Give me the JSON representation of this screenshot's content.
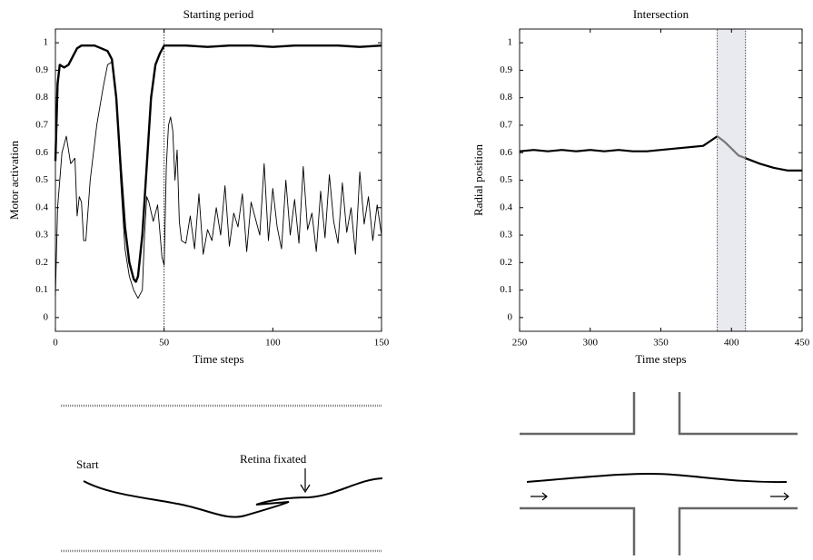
{
  "chart_data": [
    {
      "type": "line",
      "title": "Starting period",
      "xlabel": "Time steps",
      "ylabel": "Motor activation",
      "xlim": [
        0,
        150
      ],
      "ylim": [
        -0.05,
        1.05
      ],
      "xticks": [
        0,
        50,
        100,
        150
      ],
      "yticks": [
        0,
        0.1,
        0.2,
        0.3,
        0.4,
        0.5,
        0.6,
        0.7,
        0.8,
        0.9,
        1
      ],
      "vline": 50,
      "series": [
        {
          "color": "#000000",
          "width": 2.4,
          "x": [
            0,
            1,
            2,
            4,
            6,
            8,
            10,
            12,
            15,
            18,
            21,
            24,
            26,
            28,
            30,
            32,
            34,
            36,
            37,
            38,
            40,
            42,
            44,
            46,
            48,
            50,
            60,
            70,
            80,
            90,
            100,
            110,
            120,
            130,
            140,
            150
          ],
          "values": [
            0.57,
            0.85,
            0.92,
            0.91,
            0.92,
            0.95,
            0.98,
            0.99,
            0.99,
            0.99,
            0.98,
            0.97,
            0.94,
            0.8,
            0.55,
            0.33,
            0.2,
            0.14,
            0.13,
            0.15,
            0.3,
            0.55,
            0.8,
            0.92,
            0.96,
            0.99,
            0.99,
            0.985,
            0.99,
            0.99,
            0.985,
            0.99,
            0.99,
            0.99,
            0.985,
            0.99
          ]
        },
        {
          "color": "#000000",
          "width": 0.9,
          "x": [
            0,
            1,
            3,
            5,
            7,
            9,
            10,
            11,
            12,
            13,
            14,
            16,
            19,
            22,
            24,
            26,
            28,
            30,
            32,
            34,
            36,
            38,
            40,
            41,
            42,
            43,
            45,
            47,
            49,
            50,
            51,
            52,
            53,
            54,
            55,
            56,
            57,
            58,
            60,
            62,
            64,
            66,
            68,
            70,
            72,
            74,
            76,
            78,
            80,
            82,
            84,
            86,
            88,
            90,
            92,
            94,
            96,
            98,
            100,
            102,
            104,
            106,
            108,
            110,
            112,
            114,
            116,
            118,
            120,
            122,
            124,
            126,
            128,
            130,
            132,
            134,
            136,
            138,
            140,
            142,
            144,
            146,
            148,
            150
          ],
          "values": [
            0.08,
            0.4,
            0.6,
            0.66,
            0.56,
            0.58,
            0.37,
            0.44,
            0.42,
            0.28,
            0.28,
            0.5,
            0.7,
            0.84,
            0.92,
            0.93,
            0.8,
            0.5,
            0.25,
            0.15,
            0.1,
            0.07,
            0.1,
            0.3,
            0.44,
            0.42,
            0.35,
            0.41,
            0.22,
            0.19,
            0.55,
            0.7,
            0.73,
            0.68,
            0.5,
            0.61,
            0.35,
            0.28,
            0.27,
            0.37,
            0.25,
            0.45,
            0.23,
            0.32,
            0.28,
            0.4,
            0.3,
            0.48,
            0.26,
            0.38,
            0.33,
            0.45,
            0.24,
            0.42,
            0.36,
            0.3,
            0.56,
            0.28,
            0.47,
            0.33,
            0.25,
            0.5,
            0.3,
            0.43,
            0.27,
            0.55,
            0.32,
            0.38,
            0.24,
            0.46,
            0.29,
            0.52,
            0.35,
            0.27,
            0.49,
            0.31,
            0.4,
            0.23,
            0.53,
            0.34,
            0.44,
            0.28,
            0.41,
            0.3
          ]
        }
      ]
    },
    {
      "type": "line",
      "title": "Intersection",
      "xlabel": "Time steps",
      "ylabel": "Radial position",
      "xlim": [
        250,
        450
      ],
      "ylim": [
        -0.05,
        1.05
      ],
      "xticks": [
        250,
        300,
        350,
        400,
        450
      ],
      "yticks": [
        0,
        0.1,
        0.2,
        0.3,
        0.4,
        0.5,
        0.6,
        0.7,
        0.8,
        0.9,
        1
      ],
      "shade": [
        390,
        410
      ],
      "series": [
        {
          "color": "#000000",
          "width": 2.2,
          "x": [
            250,
            260,
            270,
            280,
            290,
            300,
            310,
            320,
            330,
            340,
            350,
            360,
            370,
            380,
            390,
            400,
            410,
            420,
            430,
            440,
            450
          ],
          "values": [
            0.605,
            0.61,
            0.605,
            0.61,
            0.605,
            0.61,
            0.605,
            0.61,
            0.605,
            0.605,
            0.61,
            0.615,
            0.62,
            0.625,
            0.66,
            null,
            0.58,
            0.56,
            0.545,
            0.535,
            0.535
          ]
        },
        {
          "color": "#777777",
          "width": 2.2,
          "x": [
            390,
            395,
            400,
            405,
            410
          ],
          "values": [
            0.66,
            0.64,
            0.615,
            0.59,
            0.58
          ]
        }
      ]
    }
  ],
  "diagrams": {
    "left_labels": [
      "Start",
      "Retina fixated"
    ]
  }
}
